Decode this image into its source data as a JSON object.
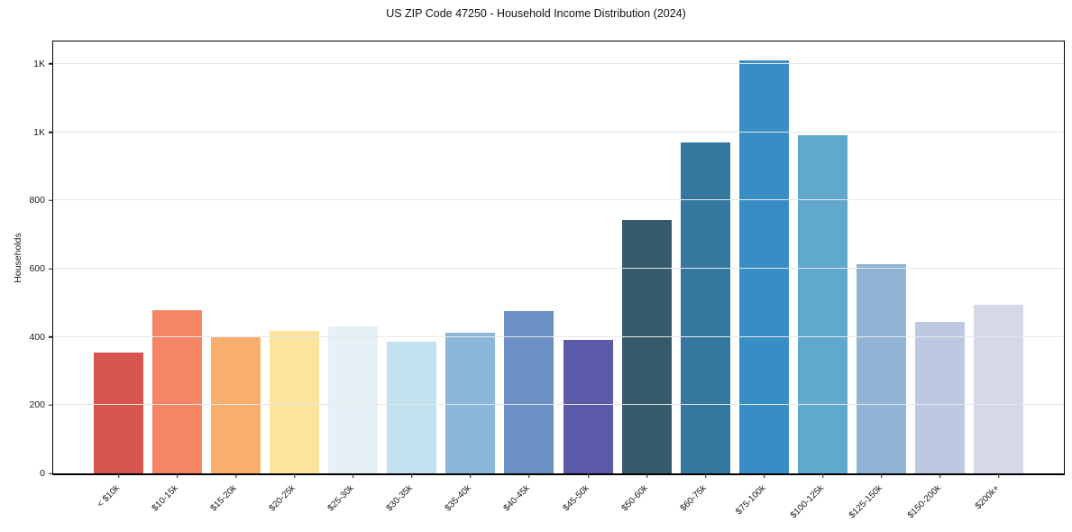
{
  "title": "US ZIP Code 47250 - Household Income Distribution (2024)",
  "chart_data": {
    "type": "bar",
    "title": "US ZIP Code 47250 - Household Income Distribution (2024)",
    "xlabel": "",
    "ylabel": "Households",
    "categories": [
      "< $10k",
      "$10-15k",
      "$15-20k",
      "$20-25k",
      "$25-30k",
      "$30-35k",
      "$35-40k",
      "$40-45k",
      "$45-50k",
      "$50-60k",
      "$60-75k",
      "$75-100k",
      "$100-125k",
      "$125-150k",
      "$150-200k",
      "$200k+"
    ],
    "values": [
      355,
      478,
      400,
      418,
      432,
      386,
      412,
      477,
      391,
      744,
      970,
      1210,
      992,
      612,
      445,
      495
    ],
    "bar_colors": [
      "#d5564f",
      "#f48565",
      "#f9ae6e",
      "#fce49e",
      "#e6f1f5",
      "#c2e1ee",
      "#8db7d8",
      "#6c90c4",
      "#5c59a8",
      "#36596c",
      "#35789f",
      "#398dc5",
      "#61a8cd",
      "#90b4d4",
      "#bdc9e0",
      "#d7d8e6"
    ],
    "yticks": [
      {
        "value": 0,
        "label": "0"
      },
      {
        "value": 200,
        "label": "200"
      },
      {
        "value": 400,
        "label": "400"
      },
      {
        "value": 600,
        "label": "600"
      },
      {
        "value": 800,
        "label": "800"
      },
      {
        "value": 1000,
        "label": "1K"
      },
      {
        "value": 1200,
        "label": "1K"
      }
    ],
    "ylim": [
      0,
      1266
    ],
    "grid": "horizontal",
    "legend": "none",
    "background": "#ffffff"
  }
}
